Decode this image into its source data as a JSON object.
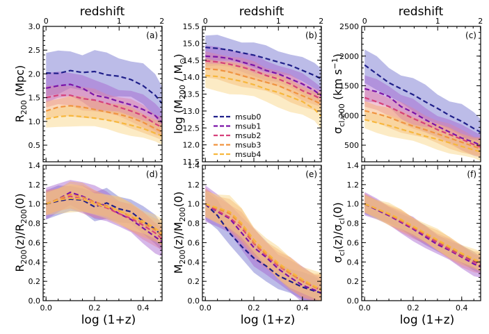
{
  "figure": {
    "top_axis_label": "redshift",
    "x_axis_label": "log (1+z)",
    "top_ticks": [
      "0",
      "1",
      "2"
    ],
    "x_ticks": [
      "0.0",
      "0.2",
      "0.4"
    ]
  },
  "series_styles": [
    {
      "name": "msub0",
      "color": "#1f1f8a",
      "band": "#6a6acb"
    },
    {
      "name": "msub1",
      "color": "#7b13a8",
      "band": "#a35fcf"
    },
    {
      "name": "msub2",
      "color": "#d6407a",
      "band": "#df80a2"
    },
    {
      "name": "msub3",
      "color": "#f0933f",
      "band": "#f4a96b"
    },
    {
      "name": "msub4",
      "color": "#f7b73d",
      "band": "#f9d27f"
    }
  ],
  "chart_data": [
    {
      "type": "line",
      "panel": "(a)",
      "ylabel": "R_200 (Mpc)",
      "yticks": [
        "0.5",
        "1.0",
        "1.5",
        "2.0",
        "2.5",
        "3.0"
      ],
      "ylim": [
        0.15,
        3.0
      ],
      "xlim": [
        -0.012,
        0.478
      ],
      "x": [
        0.0,
        0.05,
        0.1,
        0.15,
        0.2,
        0.25,
        0.3,
        0.35,
        0.4,
        0.45,
        0.477
      ],
      "series": [
        {
          "name": "msub0",
          "values": [
            2.02,
            2.01,
            2.07,
            2.03,
            2.05,
            1.98,
            1.95,
            1.88,
            1.75,
            1.55,
            1.38
          ],
          "half_width": 0.42
        },
        {
          "name": "msub1",
          "values": [
            1.7,
            1.75,
            1.78,
            1.7,
            1.55,
            1.5,
            1.42,
            1.35,
            1.25,
            1.12,
            0.98
          ],
          "half_width": 0.28
        },
        {
          "name": "msub2",
          "values": [
            1.5,
            1.55,
            1.55,
            1.48,
            1.45,
            1.38,
            1.3,
            1.22,
            1.12,
            0.95,
            0.88
          ],
          "half_width": 0.22
        },
        {
          "name": "msub3",
          "values": [
            1.22,
            1.3,
            1.33,
            1.3,
            1.25,
            1.2,
            1.15,
            1.08,
            0.98,
            0.85,
            0.78
          ],
          "half_width": 0.2
        },
        {
          "name": "msub4",
          "values": [
            1.05,
            1.1,
            1.12,
            1.1,
            1.07,
            1.03,
            0.98,
            0.92,
            0.85,
            0.75,
            0.7
          ],
          "half_width": 0.2
        }
      ]
    },
    {
      "type": "line",
      "panel": "(b)",
      "ylabel": "log (M_200 / M_⊙)",
      "yticks": [
        "11.5",
        "12.0",
        "12.5",
        "13.0",
        "13.5",
        "14.0",
        "14.5",
        "15.0",
        "15.5"
      ],
      "ylim": [
        11.5,
        15.5
      ],
      "xlim": [
        -0.012,
        0.478
      ],
      "x": [
        0.0,
        0.05,
        0.1,
        0.15,
        0.2,
        0.25,
        0.3,
        0.35,
        0.4,
        0.45,
        0.477
      ],
      "series": [
        {
          "name": "msub0",
          "values": [
            14.88,
            14.85,
            14.8,
            14.72,
            14.65,
            14.55,
            14.45,
            14.35,
            14.2,
            14.05,
            13.95
          ],
          "half_width": 0.35
        },
        {
          "name": "msub1",
          "values": [
            14.62,
            14.6,
            14.55,
            14.45,
            14.35,
            14.2,
            14.1,
            13.95,
            13.8,
            13.6,
            13.45
          ],
          "half_width": 0.28
        },
        {
          "name": "msub2",
          "values": [
            14.48,
            14.45,
            14.38,
            14.3,
            14.2,
            14.05,
            13.95,
            13.8,
            13.6,
            13.45,
            13.35
          ],
          "half_width": 0.25
        },
        {
          "name": "msub3",
          "values": [
            14.25,
            14.22,
            14.15,
            14.05,
            13.95,
            13.85,
            13.75,
            13.6,
            13.45,
            13.3,
            13.2
          ],
          "half_width": 0.3
        },
        {
          "name": "msub4",
          "values": [
            14.05,
            14.02,
            13.95,
            13.88,
            13.78,
            13.65,
            13.55,
            13.42,
            13.28,
            13.05,
            12.85
          ],
          "half_width": 0.4
        }
      ],
      "legend": {
        "placement": "center-left",
        "entries": [
          "msub0",
          "msub1",
          "msub2",
          "msub3",
          "msub4"
        ]
      }
    },
    {
      "type": "line",
      "panel": "(c)",
      "ylabel": "σ_cl,200 (km s⁻¹)",
      "yticks": [
        "500",
        "1000",
        "1500",
        "2000",
        "2500"
      ],
      "ylim": [
        220,
        2500
      ],
      "xlim": [
        -0.012,
        0.478
      ],
      "x": [
        0.0,
        0.05,
        0.1,
        0.15,
        0.2,
        0.25,
        0.3,
        0.35,
        0.4,
        0.45,
        0.477
      ],
      "series": [
        {
          "name": "msub0",
          "values": [
            1850,
            1700,
            1550,
            1450,
            1350,
            1230,
            1120,
            1000,
            900,
            780,
            720
          ],
          "half_width": 260
        },
        {
          "name": "msub1",
          "values": [
            1450,
            1400,
            1320,
            1150,
            1050,
            930,
            820,
            720,
            620,
            550,
            500
          ],
          "half_width": 200
        },
        {
          "name": "msub2",
          "values": [
            1300,
            1230,
            1150,
            1050,
            950,
            860,
            760,
            680,
            600,
            510,
            470
          ],
          "half_width": 160
        },
        {
          "name": "msub3",
          "values": [
            1080,
            1030,
            970,
            890,
            820,
            760,
            690,
            620,
            550,
            480,
            440
          ],
          "half_width": 160
        },
        {
          "name": "msub4",
          "values": [
            930,
            880,
            830,
            770,
            710,
            650,
            600,
            540,
            480,
            420,
            390
          ],
          "half_width": 160
        }
      ]
    },
    {
      "type": "line",
      "panel": "(d)",
      "ylabel": "R_200(z)/R_200(0)",
      "yticks": [
        "0.0",
        "0.2",
        "0.4",
        "0.6",
        "0.8",
        "1.0",
        "1.2",
        "1.4"
      ],
      "ylim": [
        0.0,
        1.4
      ],
      "xlim": [
        -0.012,
        0.478
      ],
      "x": [
        0.0,
        0.05,
        0.1,
        0.15,
        0.2,
        0.25,
        0.3,
        0.35,
        0.4,
        0.45,
        0.477
      ],
      "series": [
        {
          "name": "msub0",
          "values": [
            1.0,
            1.03,
            1.05,
            1.04,
            0.97,
            1.01,
            0.95,
            0.92,
            0.82,
            0.74,
            0.67
          ],
          "half_width": 0.14
        },
        {
          "name": "msub1",
          "values": [
            1.0,
            1.05,
            1.12,
            1.08,
            1.02,
            0.98,
            0.9,
            0.84,
            0.75,
            0.66,
            0.61
          ],
          "half_width": 0.15
        },
        {
          "name": "msub2",
          "values": [
            1.0,
            1.04,
            1.08,
            1.05,
            1.0,
            0.96,
            0.9,
            0.85,
            0.78,
            0.7,
            0.64
          ],
          "half_width": 0.13
        },
        {
          "name": "msub3",
          "values": [
            1.0,
            1.05,
            1.1,
            1.07,
            1.02,
            0.98,
            0.93,
            0.87,
            0.8,
            0.73,
            0.68
          ],
          "half_width": 0.13
        },
        {
          "name": "msub4",
          "values": [
            1.0,
            1.04,
            1.06,
            1.05,
            1.0,
            0.97,
            0.93,
            0.88,
            0.82,
            0.75,
            0.7
          ],
          "half_width": 0.13
        }
      ]
    },
    {
      "type": "line",
      "panel": "(e)",
      "ylabel": "M_200(z)/M_200(0)",
      "yticks": [
        "0.0",
        "0.2",
        "0.4",
        "0.6",
        "0.8",
        "1.0",
        "1.2",
        "1.4"
      ],
      "ylim": [
        0.0,
        1.4
      ],
      "xlim": [
        -0.012,
        0.478
      ],
      "x": [
        0.0,
        0.05,
        0.1,
        0.15,
        0.2,
        0.25,
        0.3,
        0.35,
        0.4,
        0.45,
        0.477
      ],
      "series": [
        {
          "name": "msub0",
          "values": [
            1.0,
            0.88,
            0.7,
            0.56,
            0.44,
            0.36,
            0.26,
            0.2,
            0.14,
            0.1,
            0.08
          ],
          "half_width": 0.14
        },
        {
          "name": "msub1",
          "values": [
            1.0,
            0.92,
            0.85,
            0.7,
            0.55,
            0.45,
            0.33,
            0.24,
            0.16,
            0.11,
            0.08
          ],
          "half_width": 0.17
        },
        {
          "name": "msub2",
          "values": [
            1.0,
            0.93,
            0.86,
            0.75,
            0.59,
            0.47,
            0.36,
            0.28,
            0.2,
            0.14,
            0.11
          ],
          "half_width": 0.15
        },
        {
          "name": "msub3",
          "values": [
            1.0,
            0.95,
            0.9,
            0.78,
            0.6,
            0.48,
            0.37,
            0.28,
            0.2,
            0.14,
            0.11
          ],
          "half_width": 0.15
        },
        {
          "name": "msub4",
          "values": [
            1.0,
            0.96,
            0.92,
            0.8,
            0.63,
            0.5,
            0.39,
            0.3,
            0.22,
            0.15,
            0.12
          ],
          "half_width": 0.15
        }
      ]
    },
    {
      "type": "line",
      "panel": "(f)",
      "ylabel": "σ_cl(z)/σ_cl(0)",
      "yticks": [
        "0.0",
        "0.2",
        "0.4",
        "0.6",
        "0.8",
        "1.0",
        "1.2",
        "1.4"
      ],
      "ylim": [
        0.0,
        1.4
      ],
      "xlim": [
        -0.012,
        0.478
      ],
      "x": [
        0.0,
        0.05,
        0.1,
        0.15,
        0.2,
        0.25,
        0.3,
        0.35,
        0.4,
        0.45,
        0.477
      ],
      "series": [
        {
          "name": "msub0",
          "values": [
            1.0,
            0.94,
            0.88,
            0.82,
            0.75,
            0.68,
            0.6,
            0.53,
            0.47,
            0.41,
            0.38
          ],
          "half_width": 0.09
        },
        {
          "name": "msub1",
          "values": [
            1.0,
            0.94,
            0.88,
            0.81,
            0.74,
            0.66,
            0.58,
            0.52,
            0.45,
            0.38,
            0.35
          ],
          "half_width": 0.11
        },
        {
          "name": "msub2",
          "values": [
            1.0,
            0.95,
            0.89,
            0.82,
            0.75,
            0.68,
            0.6,
            0.53,
            0.46,
            0.4,
            0.37
          ],
          "half_width": 0.1
        },
        {
          "name": "msub3",
          "values": [
            1.0,
            0.95,
            0.89,
            0.83,
            0.76,
            0.69,
            0.62,
            0.55,
            0.48,
            0.42,
            0.39
          ],
          "half_width": 0.1
        },
        {
          "name": "msub4",
          "values": [
            1.0,
            0.95,
            0.9,
            0.84,
            0.77,
            0.7,
            0.63,
            0.56,
            0.49,
            0.43,
            0.4
          ],
          "half_width": 0.1
        }
      ]
    }
  ]
}
